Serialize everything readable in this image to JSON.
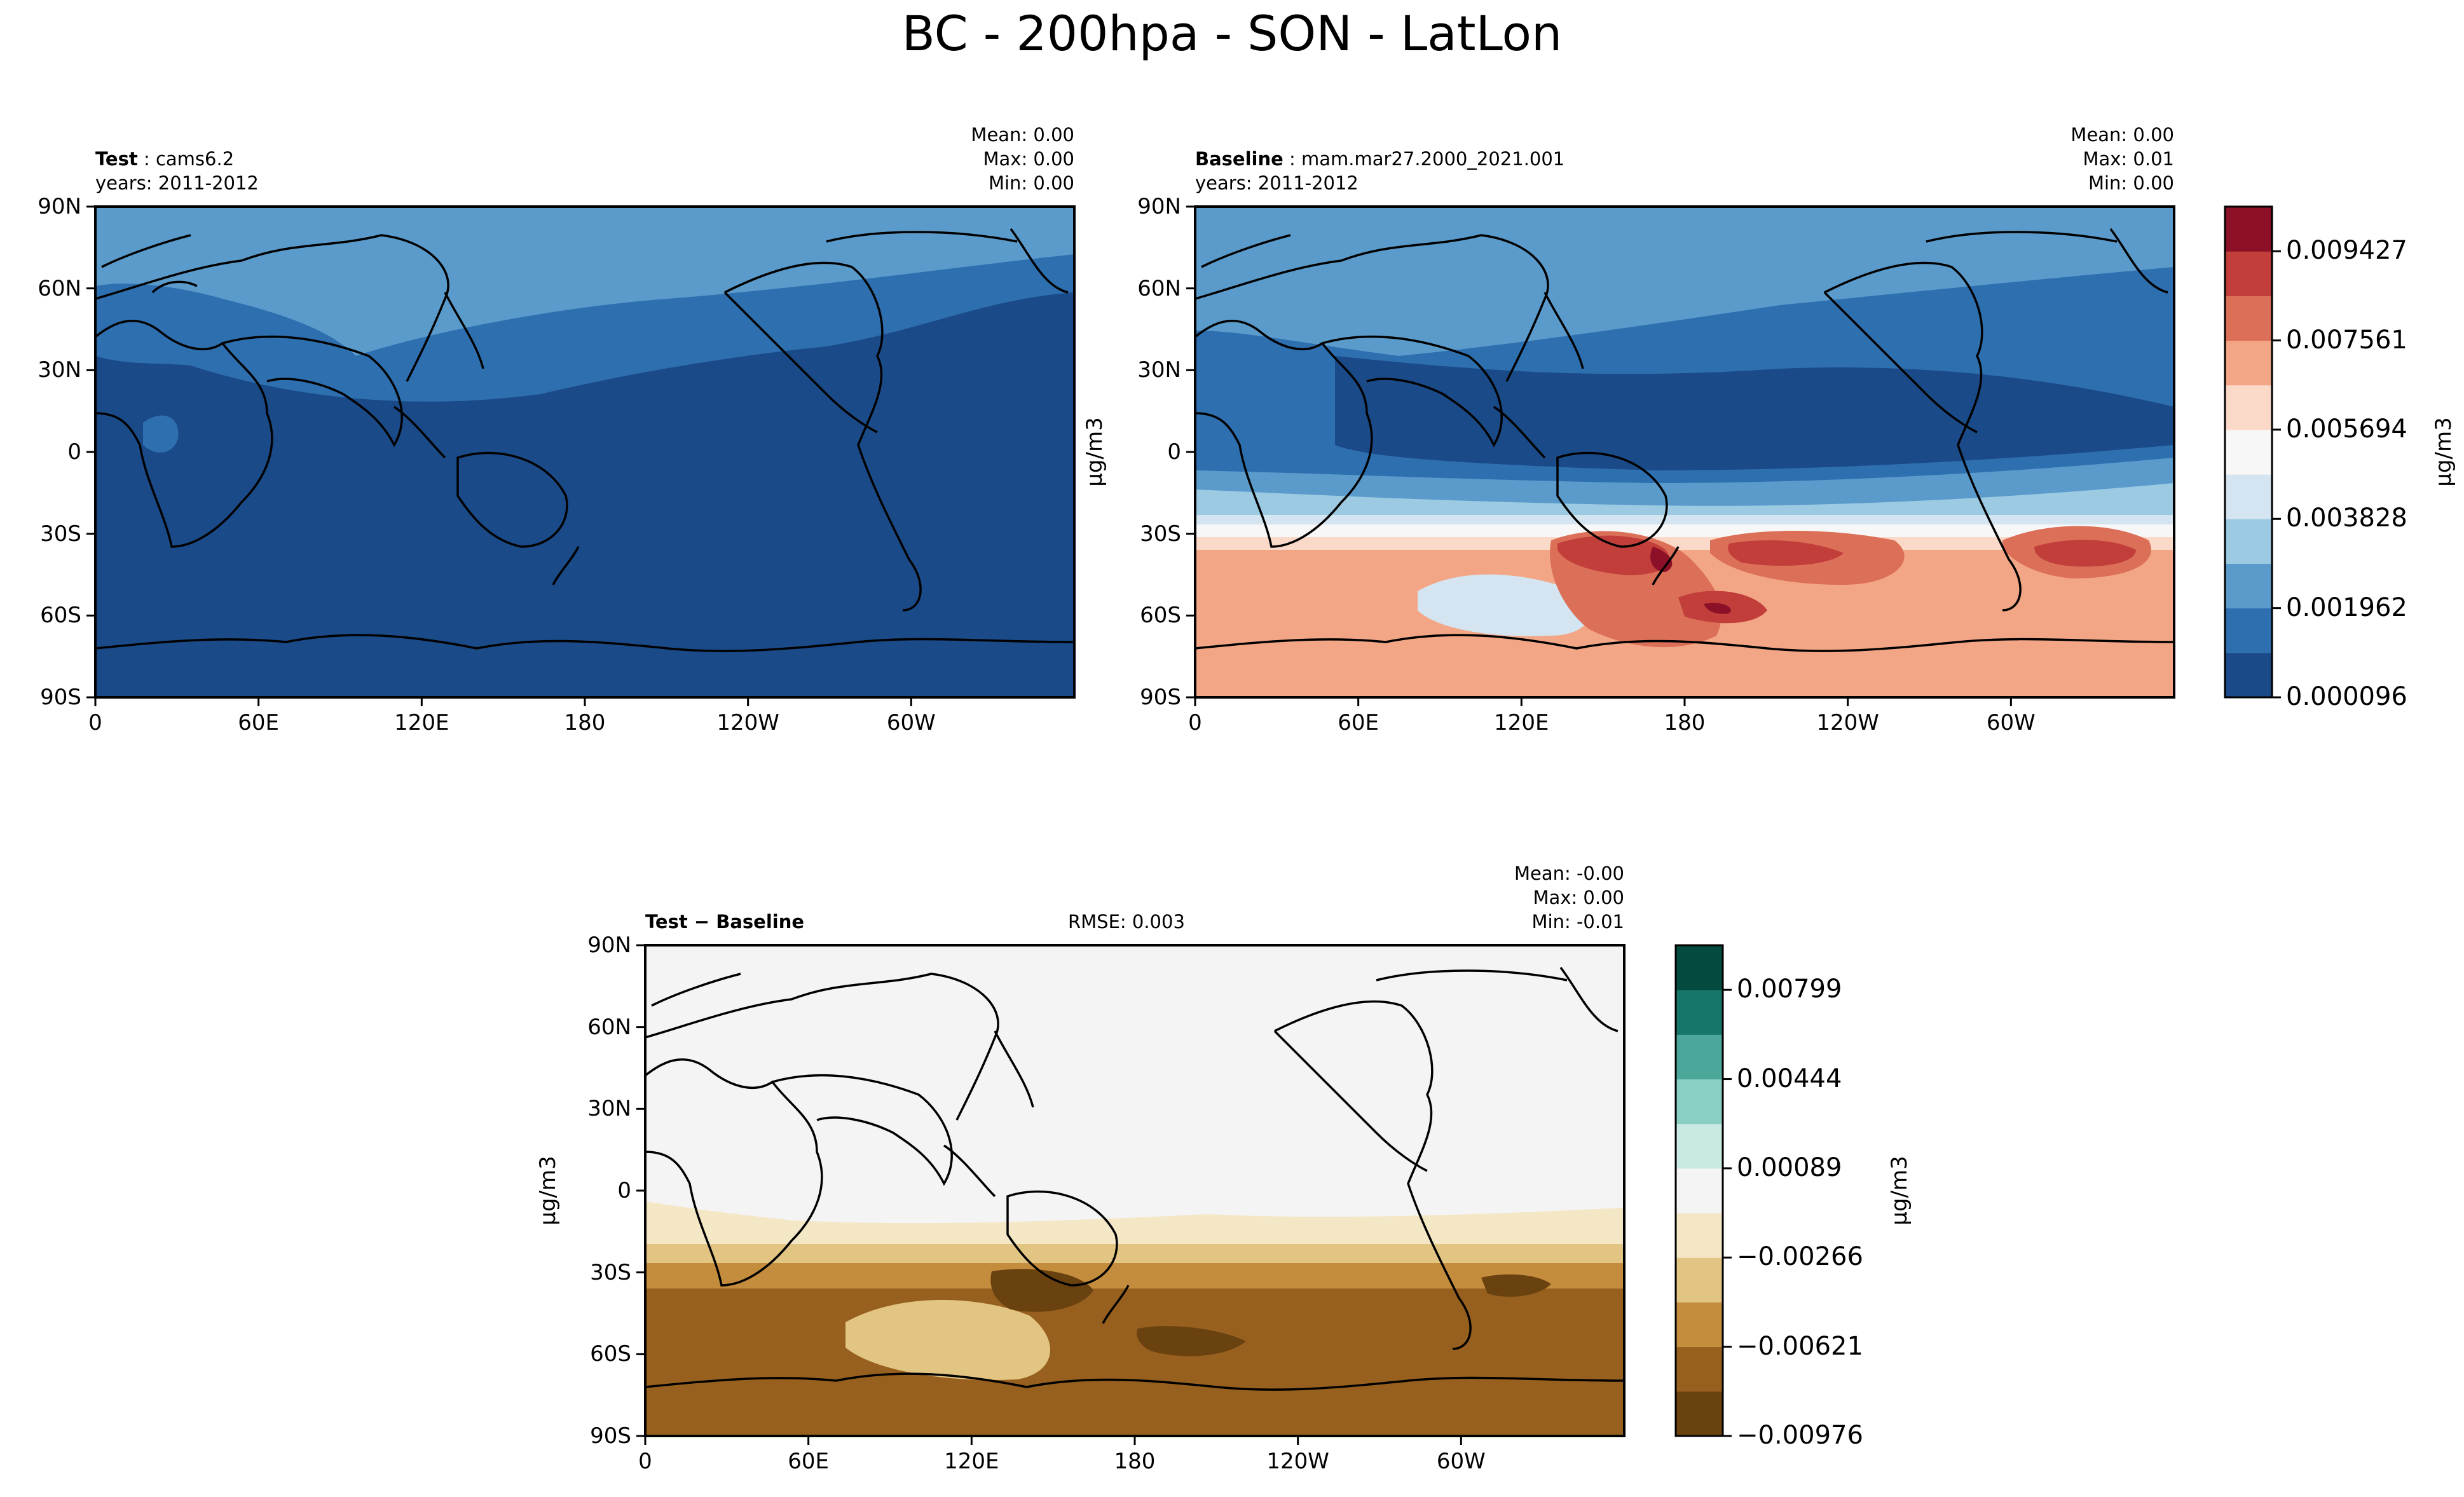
{
  "title": "BC - 200hpa - SON - LatLon",
  "panels": {
    "test": {
      "label_bold": "Test",
      "case": "cams6.2",
      "years": "years: 2011-2012",
      "stats": [
        "Mean:  0.00",
        "Max:  0.00",
        "Min:  0.00"
      ]
    },
    "baseline": {
      "label_bold": "Baseline",
      "case": "mam.mar27.2000_2021.001",
      "years": "years: 2011-2012",
      "stats": [
        "Mean:  0.00",
        "Max:  0.01",
        "Min:  0.00"
      ]
    },
    "diff": {
      "label_bold": "Test − Baseline",
      "rmse": "RMSE: 0.003",
      "stats": [
        "Mean: -0.00",
        "Max:  0.00",
        "Min: -0.01"
      ]
    }
  },
  "axes": {
    "lat_ticks": [
      "90N",
      "60N",
      "30N",
      "0",
      "30S",
      "60S",
      "90S"
    ],
    "lon_ticks": [
      "0",
      "60E",
      "120E",
      "180",
      "120W",
      "60W"
    ],
    "units": "μg/m3"
  },
  "colorbar_top": {
    "ticks": [
      "0.009427",
      "0.007561",
      "0.005694",
      "0.003828",
      "0.001962",
      "0.000096"
    ],
    "colors": [
      "#1a4a87",
      "#2e6fb0",
      "#5a9bcc",
      "#9ccae2",
      "#d4e5f1",
      "#f7f7f7",
      "#fbd9c8",
      "#f3a685",
      "#dc6f57",
      "#c13e3b",
      "#8c1028"
    ]
  },
  "colorbar_diff": {
    "ticks": [
      "0.00799",
      "0.00444",
      "0.00089",
      "−0.00266",
      "−0.00621",
      "−0.00976"
    ],
    "colors": [
      "#6a4210",
      "#98601e",
      "#c48c3d",
      "#e2c583",
      "#f4e7c6",
      "#f4f4f4",
      "#c9eae3",
      "#89d0c3",
      "#4aa79a",
      "#167669",
      "#024b3e"
    ]
  },
  "chart_data": [
    {
      "type": "heatmap",
      "name": "Test",
      "xlabel": "",
      "ylabel": "",
      "xlim": [
        0,
        360
      ],
      "ylim": [
        -90,
        90
      ],
      "value_range": [
        0.0,
        0.0
      ],
      "summary": {
        "mean": 0.0,
        "max": 0.0,
        "min": 0.0
      }
    },
    {
      "type": "heatmap",
      "name": "Baseline",
      "xlabel": "",
      "ylabel": "μg/m3",
      "xlim": [
        0,
        360
      ],
      "ylim": [
        -90,
        90
      ],
      "levels": [
        9.6e-05,
        0.001962,
        0.003828,
        0.005694,
        0.007561,
        0.009427
      ],
      "summary": {
        "mean": 0.0,
        "max": 0.01,
        "min": 0.0
      }
    },
    {
      "type": "heatmap",
      "name": "Test − Baseline",
      "xlabel": "",
      "ylabel": "μg/m3",
      "xlim": [
        0,
        360
      ],
      "ylim": [
        -90,
        90
      ],
      "levels": [
        -0.00976,
        -0.00621,
        -0.00266,
        0.00089,
        0.00444,
        0.00799
      ],
      "summary": {
        "mean": -0.0,
        "max": 0.0,
        "min": -0.01,
        "rmse": 0.003
      }
    }
  ]
}
